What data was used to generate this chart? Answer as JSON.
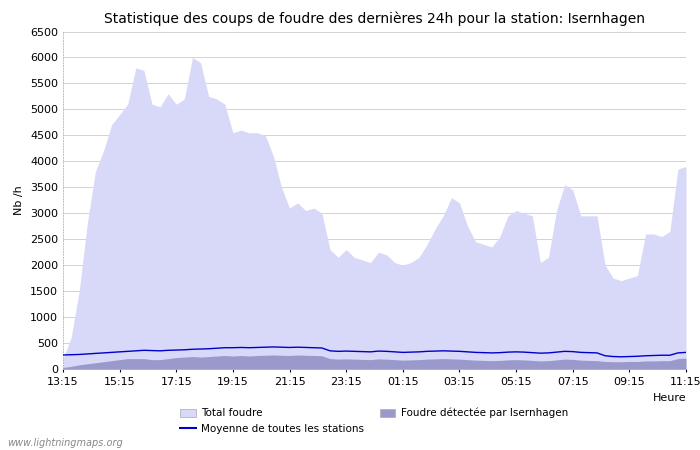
{
  "title": "Statistique des coups de foudre des dernières 24h pour la station: Isernhagen",
  "xlabel": "Heure",
  "ylabel": "Nb /h",
  "watermark": "www.lightningmaps.org",
  "ylim": [
    0,
    6500
  ],
  "yticks": [
    0,
    500,
    1000,
    1500,
    2000,
    2500,
    3000,
    3500,
    4000,
    4500,
    5000,
    5500,
    6000,
    6500
  ],
  "xtick_labels": [
    "13:15",
    "15:15",
    "17:15",
    "19:15",
    "21:15",
    "23:15",
    "01:15",
    "03:15",
    "05:15",
    "07:15",
    "09:15",
    "11:15"
  ],
  "bg_color": "#ffffff",
  "grid_color": "#cccccc",
  "fill_total_color": "#d8d8f8",
  "fill_local_color": "#9999cc",
  "line_color": "#0000cc",
  "title_fontsize": 10,
  "axis_fontsize": 8,
  "tick_fontsize": 8,
  "total_foudre": [
    200,
    600,
    1500,
    2800,
    3800,
    4200,
    4700,
    4900,
    5100,
    5800,
    5750,
    5100,
    5050,
    5300,
    5100,
    5200,
    6000,
    5900,
    5250,
    5200,
    5100,
    4550,
    4600,
    4550,
    4550,
    4500,
    4100,
    3500,
    3100,
    3200,
    3050,
    3100,
    3000,
    2300,
    2150,
    2300,
    2150,
    2100,
    2050,
    2250,
    2200,
    2050,
    2000,
    2050,
    2150,
    2400,
    2700,
    2950,
    3300,
    3200,
    2750,
    2450,
    2400,
    2350,
    2550,
    2950,
    3050,
    3000,
    2950,
    2050,
    2150,
    3050,
    3550,
    3450,
    2950,
    2950,
    2950,
    2000,
    1750,
    1700,
    1750,
    1800,
    2600,
    2600,
    2550,
    2650,
    3850,
    3900
  ],
  "local_foudre": [
    30,
    50,
    80,
    100,
    120,
    140,
    160,
    180,
    200,
    200,
    200,
    180,
    180,
    200,
    220,
    230,
    240,
    230,
    240,
    250,
    260,
    250,
    260,
    250,
    260,
    265,
    270,
    265,
    260,
    270,
    265,
    260,
    255,
    200,
    190,
    195,
    190,
    185,
    180,
    195,
    190,
    180,
    170,
    175,
    180,
    190,
    195,
    200,
    195,
    190,
    180,
    170,
    165,
    160,
    165,
    175,
    180,
    175,
    165,
    155,
    160,
    175,
    190,
    185,
    170,
    165,
    160,
    145,
    140,
    140,
    145,
    145,
    155,
    155,
    160,
    160,
    200,
    210
  ],
  "moyenne_stations": [
    270,
    275,
    280,
    290,
    300,
    310,
    320,
    330,
    340,
    350,
    360,
    355,
    350,
    360,
    365,
    370,
    380,
    385,
    390,
    400,
    410,
    410,
    415,
    410,
    415,
    420,
    425,
    420,
    415,
    420,
    415,
    410,
    405,
    350,
    340,
    345,
    340,
    335,
    330,
    345,
    340,
    330,
    320,
    325,
    330,
    340,
    345,
    350,
    345,
    340,
    330,
    320,
    315,
    310,
    315,
    325,
    330,
    325,
    315,
    305,
    310,
    325,
    340,
    335,
    320,
    315,
    310,
    255,
    240,
    235,
    240,
    245,
    255,
    260,
    265,
    265,
    310,
    320
  ]
}
